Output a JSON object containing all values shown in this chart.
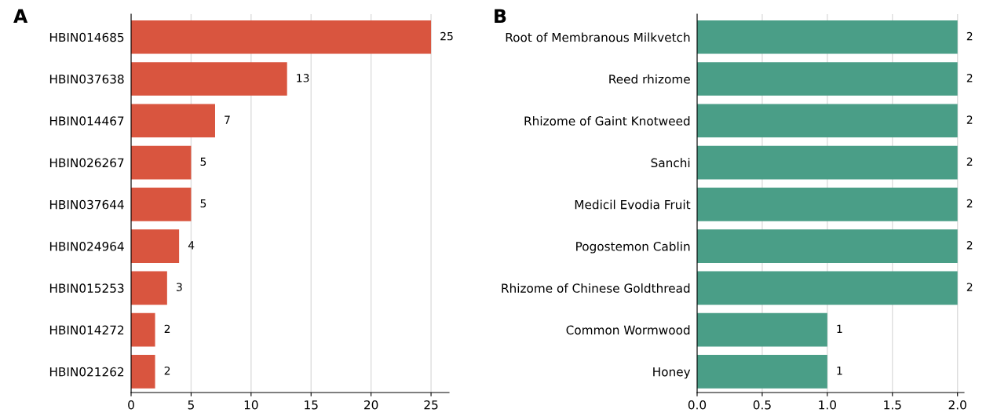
{
  "chart_data": [
    {
      "type": "bar",
      "title": "A",
      "orientation": "horizontal",
      "categories": [
        "HBIN014685",
        "HBIN037638",
        "HBIN014467",
        "HBIN026267",
        "HBIN037644",
        "HBIN024964",
        "HBIN015253",
        "HBIN014272",
        "HBIN021262"
      ],
      "values": [
        25,
        13,
        7,
        5,
        5,
        4,
        3,
        2,
        2
      ],
      "color": "#d9553f",
      "xlim": [
        0,
        26.5
      ],
      "xticks": [
        0,
        5,
        10,
        15,
        20,
        25
      ],
      "grid": "x",
      "data_labels": true
    },
    {
      "type": "bar",
      "title": "B",
      "orientation": "horizontal",
      "categories": [
        "Root of Membranous Milkvetch",
        "Reed rhizome",
        "Rhizome of Gaint Knotweed",
        "Sanchi",
        "Medicil Evodia Fruit",
        "Pogostemon Cablin",
        "Rhizome of Chinese Goldthread",
        "Common Wormwood",
        "Honey"
      ],
      "values": [
        2,
        2,
        2,
        2,
        2,
        2,
        2,
        1,
        1
      ],
      "color": "#4a9e87",
      "xlim": [
        0,
        2.05
      ],
      "xticks": [
        {
          "value": 0,
          "label": "0.0"
        },
        {
          "value": 0.5,
          "label": "0.5"
        },
        {
          "value": 1,
          "label": "1.0"
        },
        {
          "value": 1.5,
          "label": "1.5"
        },
        {
          "value": 2,
          "label": "2.0"
        }
      ],
      "grid": "x",
      "data_labels": true
    }
  ]
}
